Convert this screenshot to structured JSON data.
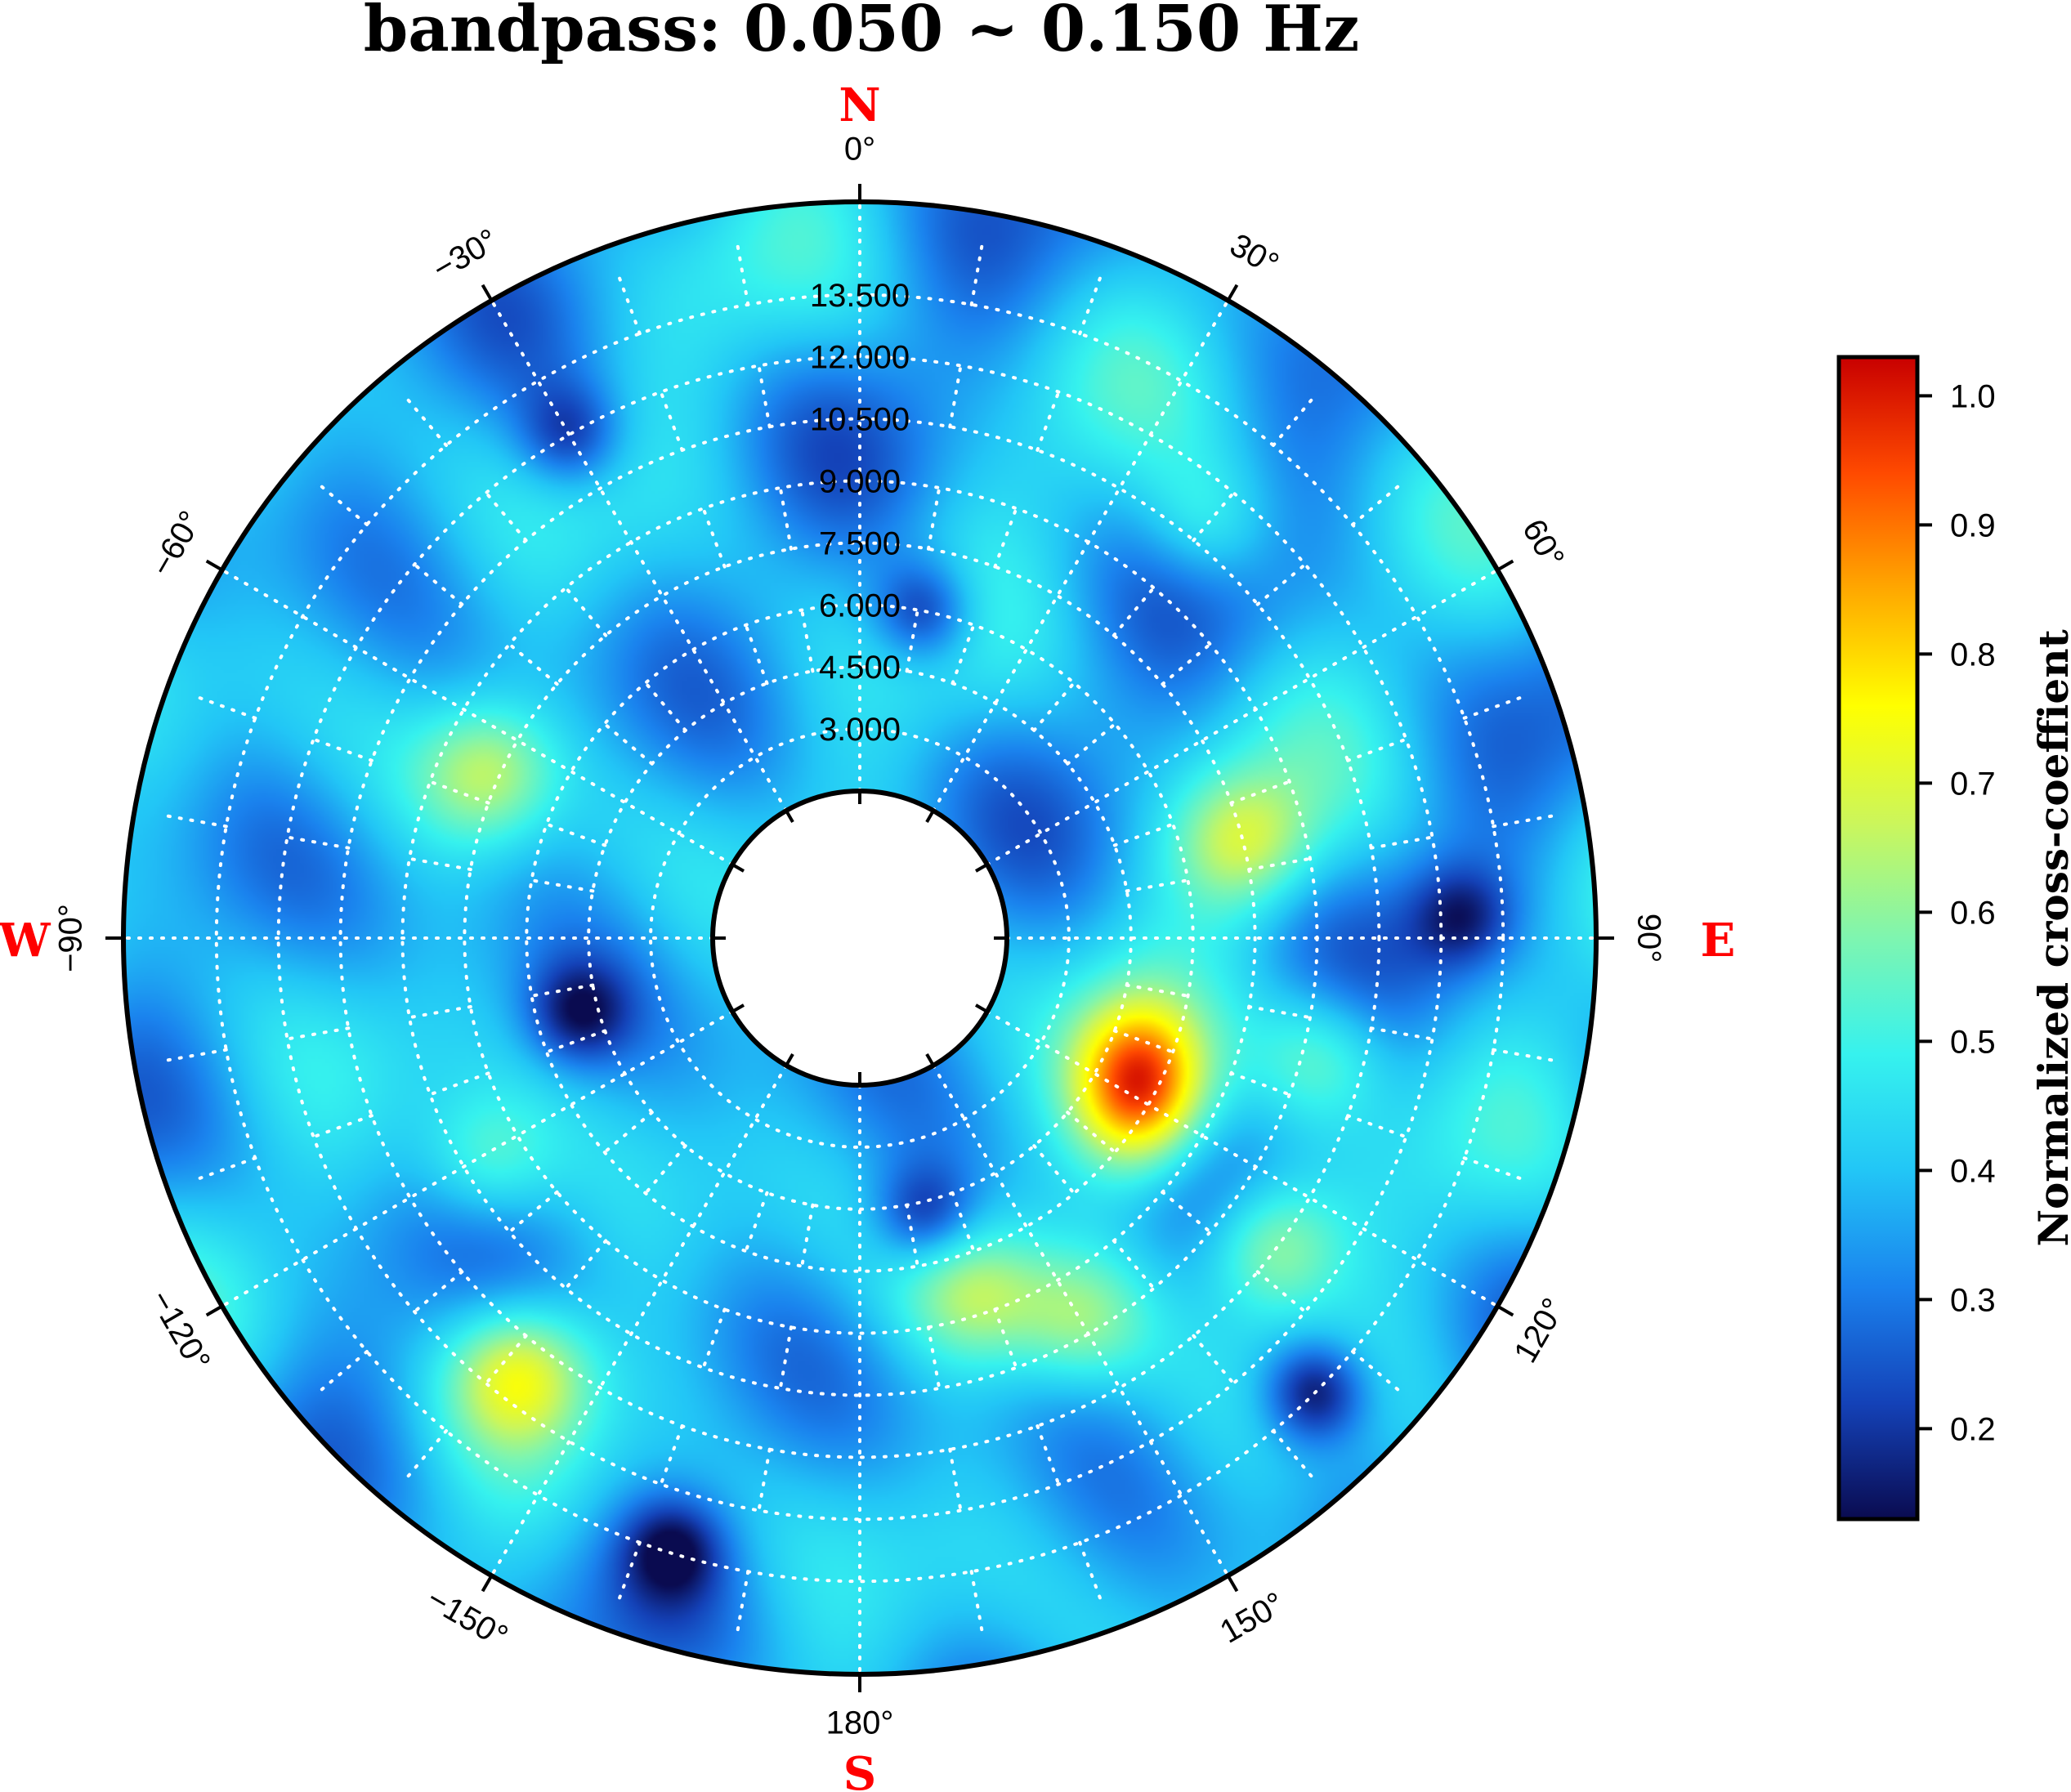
{
  "title": "bandpass: 0.050 ~ 0.150 Hz",
  "compass": {
    "north": "N",
    "south": "S",
    "east": "E",
    "west": "W"
  },
  "colors": {
    "compass": "#ff0000",
    "grid": "#ffffff",
    "colormap": [
      "#0a0b50",
      "#1442b8",
      "#1a82ee",
      "#22c6f6",
      "#36f2ee",
      "#7ef5b0",
      "#ccf65a",
      "#ffff00",
      "#ffa800",
      "#ff4a00",
      "#c80000"
    ]
  },
  "chart_data": {
    "type": "heatmap",
    "projection": "polar",
    "title": "bandpass: 0.050 ~ 0.150 Hz",
    "angle_ticks": [
      {
        "deg": 0,
        "label": "0°"
      },
      {
        "deg": 30,
        "label": "30°"
      },
      {
        "deg": 60,
        "label": "60°"
      },
      {
        "deg": 90,
        "label": "90°"
      },
      {
        "deg": 120,
        "label": "120°"
      },
      {
        "deg": 150,
        "label": "150°"
      },
      {
        "deg": 180,
        "label": "180°"
      },
      {
        "deg": -150,
        "label": "−150°"
      },
      {
        "deg": -120,
        "label": "−120°"
      },
      {
        "deg": -90,
        "label": "−90°"
      },
      {
        "deg": -60,
        "label": "−60°"
      },
      {
        "deg": -30,
        "label": "−30°"
      }
    ],
    "radial_ticks": [
      "3.000",
      "4.500",
      "6.000",
      "7.500",
      "9.000",
      "10.500",
      "12.000",
      "13.500"
    ],
    "radial_values": [
      3.0,
      4.5,
      6.0,
      7.5,
      9.0,
      10.5,
      12.0,
      13.5
    ],
    "radial_range": [
      1.5,
      15.75
    ],
    "grid": true,
    "colorbar": {
      "label": "Normalized cross-coeffient",
      "ticks": [
        "0.2",
        "0.3",
        "0.4",
        "0.5",
        "0.6",
        "0.7",
        "0.8",
        "0.9",
        "1.0"
      ],
      "tick_values": [
        0.2,
        0.3,
        0.4,
        0.5,
        0.6,
        0.7,
        0.8,
        0.9,
        1.0
      ],
      "range": [
        0.13,
        1.03
      ],
      "placement": "right"
    },
    "peak": {
      "azimuth_deg": 118,
      "radius": 5.6,
      "value": 1.0
    },
    "secondary_highs": [
      {
        "azimuth_deg": 76,
        "radius": 7.5,
        "value": 0.66
      },
      {
        "azimuth_deg": 127,
        "radius": 10.4,
        "value": 0.67
      },
      {
        "azimuth_deg": 150,
        "radius": 8.6,
        "value": 0.6
      },
      {
        "azimuth_deg": 162,
        "radius": 7.0,
        "value": 0.62
      },
      {
        "azimuth_deg": -142,
        "radius": 11.3,
        "value": 0.7
      },
      {
        "azimuth_deg": -121,
        "radius": 8.5,
        "value": 0.58
      },
      {
        "azimuth_deg": -66,
        "radius": 7.8,
        "value": 0.64
      },
      {
        "azimuth_deg": 40,
        "radius": 11.0,
        "value": 0.55
      },
      {
        "azimuth_deg": 104,
        "radius": 9.5,
        "value": 0.58
      }
    ],
    "lows": [
      {
        "azimuth_deg": 135,
        "radius": 13.5,
        "value": 0.13
      },
      {
        "azimuth_deg": 11,
        "radius": 6.0,
        "value": 0.18
      },
      {
        "azimuth_deg": 167,
        "radius": 4.8,
        "value": 0.2
      },
      {
        "azimuth_deg": -30,
        "radius": 12.0,
        "value": 0.22
      },
      {
        "azimuth_deg": -105,
        "radius": 5.0,
        "value": 0.2
      },
      {
        "azimuth_deg": -163,
        "radius": 13.4,
        "value": 0.2
      },
      {
        "azimuth_deg": 88,
        "radius": 12.5,
        "value": 0.22
      }
    ]
  }
}
